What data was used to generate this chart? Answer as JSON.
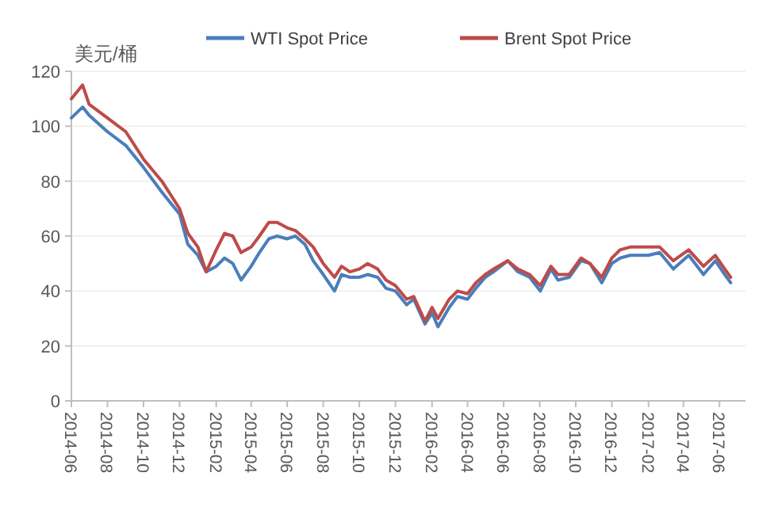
{
  "chart_data": {
    "type": "line",
    "ylabel": "美元/桶",
    "legend": "top",
    "grid": "y",
    "marker": "none",
    "line_style": "solid",
    "x": [
      "2014-06-01",
      "2014-06-20",
      "2014-07-01",
      "2014-08-01",
      "2014-09-01",
      "2014-10-01",
      "2014-11-01",
      "2014-12-01",
      "2014-12-15",
      "2015-01-01",
      "2015-01-15",
      "2015-02-01",
      "2015-02-15",
      "2015-03-01",
      "2015-03-15",
      "2015-04-01",
      "2015-04-15",
      "2015-05-01",
      "2015-05-15",
      "2015-06-01",
      "2015-06-15",
      "2015-07-01",
      "2015-07-15",
      "2015-08-01",
      "2015-08-20",
      "2015-09-01",
      "2015-09-15",
      "2015-10-01",
      "2015-10-15",
      "2015-11-01",
      "2015-11-15",
      "2015-12-01",
      "2015-12-20",
      "2016-01-01",
      "2016-01-20",
      "2016-02-01",
      "2016-02-11",
      "2016-03-01",
      "2016-03-15",
      "2016-04-01",
      "2016-04-15",
      "2016-05-01",
      "2016-05-15",
      "2016-06-08",
      "2016-06-25",
      "2016-07-15",
      "2016-08-02",
      "2016-08-20",
      "2016-09-01",
      "2016-09-20",
      "2016-10-10",
      "2016-10-25",
      "2016-11-14",
      "2016-12-01",
      "2016-12-15",
      "2017-01-01",
      "2017-02-01",
      "2017-02-20",
      "2017-03-15",
      "2017-04-10",
      "2017-05-05",
      "2017-05-25",
      "2017-06-10",
      "2017-06-20"
    ],
    "series": [
      {
        "name": "WTI Spot Price",
        "color": "#4a7ebb",
        "values": [
          103,
          107,
          104,
          98,
          93,
          85,
          76,
          68,
          57,
          53,
          47,
          49,
          52,
          50,
          44,
          49,
          54,
          59,
          60,
          59,
          60,
          57,
          51,
          46,
          40,
          46,
          45,
          45,
          46,
          45,
          41,
          40,
          35,
          37,
          28,
          32,
          27,
          34,
          38,
          37,
          41,
          45,
          47,
          51,
          47,
          45,
          40,
          48,
          44,
          45,
          51,
          50,
          43,
          50,
          52,
          53,
          53,
          54,
          48,
          53,
          46,
          51,
          46,
          43
        ]
      },
      {
        "name": "Brent Spot Price",
        "color": "#be4b48",
        "values": [
          110,
          115,
          108,
          103,
          98,
          88,
          80,
          70,
          61,
          56,
          47,
          55,
          61,
          60,
          54,
          56,
          60,
          65,
          65,
          63,
          62,
          59,
          56,
          50,
          45,
          49,
          47,
          48,
          50,
          48,
          44,
          42,
          37,
          38,
          29,
          34,
          30,
          37,
          40,
          39,
          43,
          46,
          48,
          51,
          48,
          46,
          42,
          49,
          46,
          46,
          52,
          50,
          45,
          52,
          55,
          56,
          56,
          56,
          51,
          55,
          49,
          53,
          48,
          45
        ]
      }
    ],
    "xlim": [
      "2014-06-01",
      "2017-07-15"
    ],
    "xticks": [
      {
        "value": "2014-06-01",
        "label": "2014-06"
      },
      {
        "value": "2014-08-01",
        "label": "2014-08"
      },
      {
        "value": "2014-10-01",
        "label": "2014-10"
      },
      {
        "value": "2014-12-01",
        "label": "2014-12"
      },
      {
        "value": "2015-02-01",
        "label": "2015-02"
      },
      {
        "value": "2015-04-01",
        "label": "2015-04"
      },
      {
        "value": "2015-06-01",
        "label": "2015-06"
      },
      {
        "value": "2015-08-01",
        "label": "2015-08"
      },
      {
        "value": "2015-10-01",
        "label": "2015-10"
      },
      {
        "value": "2015-12-01",
        "label": "2015-12"
      },
      {
        "value": "2016-02-01",
        "label": "2016-02"
      },
      {
        "value": "2016-04-01",
        "label": "2016-04"
      },
      {
        "value": "2016-06-01",
        "label": "2016-06"
      },
      {
        "value": "2016-08-01",
        "label": "2016-08"
      },
      {
        "value": "2016-10-01",
        "label": "2016-10"
      },
      {
        "value": "2016-12-01",
        "label": "2016-12"
      },
      {
        "value": "2017-02-01",
        "label": "2017-02"
      },
      {
        "value": "2017-04-01",
        "label": "2017-04"
      },
      {
        "value": "2017-06-01",
        "label": "2017-06"
      }
    ],
    "ylim": [
      0,
      120
    ],
    "yticks": [
      0,
      20,
      40,
      60,
      80,
      100,
      120
    ]
  }
}
